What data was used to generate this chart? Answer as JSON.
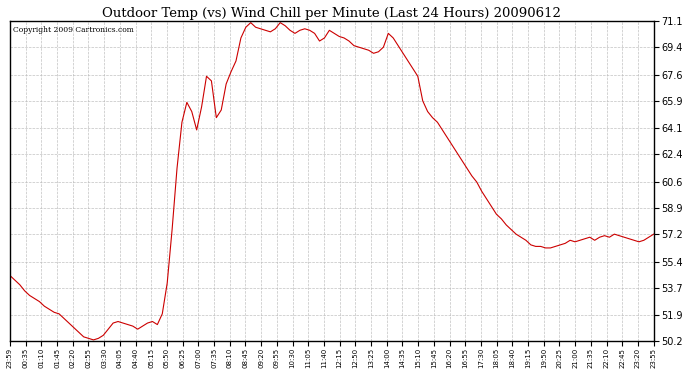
{
  "title": "Outdoor Temp (vs) Wind Chill per Minute (Last 24 Hours) 20090612",
  "copyright": "Copyright 2009 Cartronics.com",
  "line_color": "#cc0000",
  "background_color": "#ffffff",
  "grid_color": "#bbbbbb",
  "ylim": [
    50.2,
    71.1
  ],
  "yticks": [
    50.2,
    51.9,
    53.7,
    55.4,
    57.2,
    58.9,
    60.6,
    62.4,
    64.1,
    65.9,
    67.6,
    69.4,
    71.1
  ],
  "xtick_labels": [
    "23:59",
    "00:35",
    "01:10",
    "01:45",
    "02:20",
    "02:55",
    "03:30",
    "04:05",
    "04:40",
    "05:15",
    "05:50",
    "06:25",
    "07:00",
    "07:35",
    "08:10",
    "08:45",
    "09:20",
    "09:55",
    "10:30",
    "11:05",
    "11:40",
    "12:15",
    "12:50",
    "13:25",
    "14:00",
    "14:35",
    "15:10",
    "15:45",
    "16:20",
    "16:55",
    "17:30",
    "18:05",
    "18:40",
    "19:15",
    "19:50",
    "20:25",
    "21:00",
    "21:35",
    "22:10",
    "22:45",
    "23:20",
    "23:55"
  ],
  "y_values": [
    54.5,
    54.2,
    53.9,
    53.5,
    53.2,
    53.0,
    52.8,
    52.5,
    52.3,
    52.1,
    52.0,
    51.7,
    51.4,
    51.1,
    50.8,
    50.5,
    50.4,
    50.3,
    50.4,
    50.6,
    51.0,
    51.4,
    51.5,
    51.4,
    51.3,
    51.2,
    51.0,
    51.2,
    51.4,
    51.5,
    51.3,
    52.0,
    54.0,
    57.5,
    61.5,
    64.5,
    65.8,
    65.2,
    64.0,
    65.5,
    67.5,
    67.2,
    64.8,
    65.3,
    67.0,
    67.8,
    68.5,
    70.0,
    70.7,
    71.0,
    70.7,
    70.6,
    70.5,
    70.4,
    70.6,
    71.0,
    70.8,
    70.5,
    70.3,
    70.5,
    70.6,
    70.5,
    70.3,
    69.8,
    70.0,
    70.5,
    70.3,
    70.1,
    70.0,
    69.8,
    69.5,
    69.4,
    69.3,
    69.2,
    69.0,
    69.1,
    69.4,
    70.3,
    70.0,
    69.5,
    69.0,
    68.5,
    68.0,
    67.5,
    65.9,
    65.2,
    64.8,
    64.5,
    64.0,
    63.5,
    63.0,
    62.5,
    62.0,
    61.5,
    61.0,
    60.6,
    60.0,
    59.5,
    59.0,
    58.5,
    58.2,
    57.8,
    57.5,
    57.2,
    57.0,
    56.8,
    56.5,
    56.4,
    56.4,
    56.3,
    56.3,
    56.4,
    56.5,
    56.6,
    56.8,
    56.7,
    56.8,
    56.9,
    57.0,
    56.8,
    57.0,
    57.1,
    57.0,
    57.2,
    57.1,
    57.0,
    56.9,
    56.8,
    56.7,
    56.8,
    57.0,
    57.2
  ],
  "figwidth": 6.9,
  "figheight": 3.75,
  "dpi": 100
}
